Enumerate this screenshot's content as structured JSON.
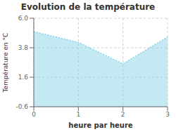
{
  "chart_data": {
    "type": "area",
    "title": "Evolution de la température",
    "xlabel": "heure par heure",
    "ylabel": "Température en °C",
    "x": [
      0,
      1,
      2,
      3
    ],
    "values": [
      5.0,
      4.2,
      2.6,
      4.6
    ],
    "xlim": [
      0,
      3
    ],
    "xticks": [
      0,
      1,
      2,
      3
    ],
    "ylim": [
      -0.6,
      6.0
    ],
    "yticks": [
      -0.6,
      1.6,
      3.8,
      {
        "value": 6.0,
        "label": "6.0"
      }
    ],
    "color": "#89d4e8",
    "line_style": "dotted",
    "grid": true
  }
}
